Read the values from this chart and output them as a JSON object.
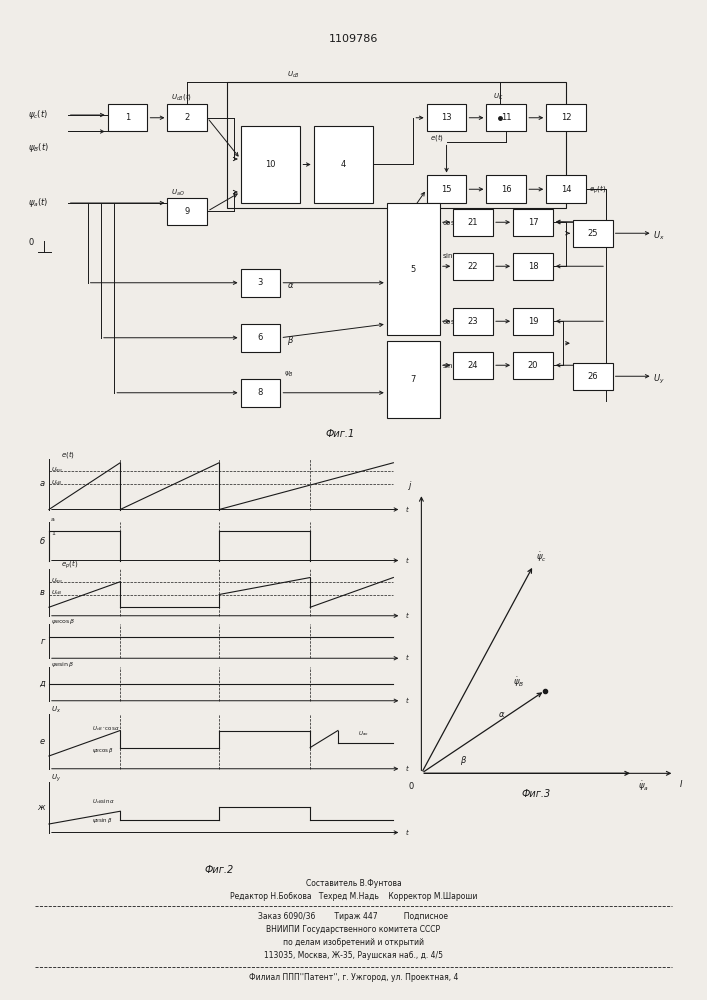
{
  "title": "1109786",
  "fig1_label": "Фиг.1",
  "fig2_label": "Фиг.2",
  "fig3_label": "Фиг.3",
  "footer_lines": [
    "Составитель В.Фунтова",
    "Редактор Н.Бобкова   Техред М.Надь    Корректор М.Шароши",
    "Заказ 6090/36        Тираж 447           Подписное",
    "ВНИИПИ Государственного комитета СССР",
    "по делам изобретений и открытий",
    "113035, Москва, Ж-35, Раушская наб., д. 4/5",
    "Филиал ППП''Патент'', г. Ужгород, ул. Проектная, 4"
  ],
  "bg_color": "#f0ede8",
  "line_color": "#1a1a1a"
}
